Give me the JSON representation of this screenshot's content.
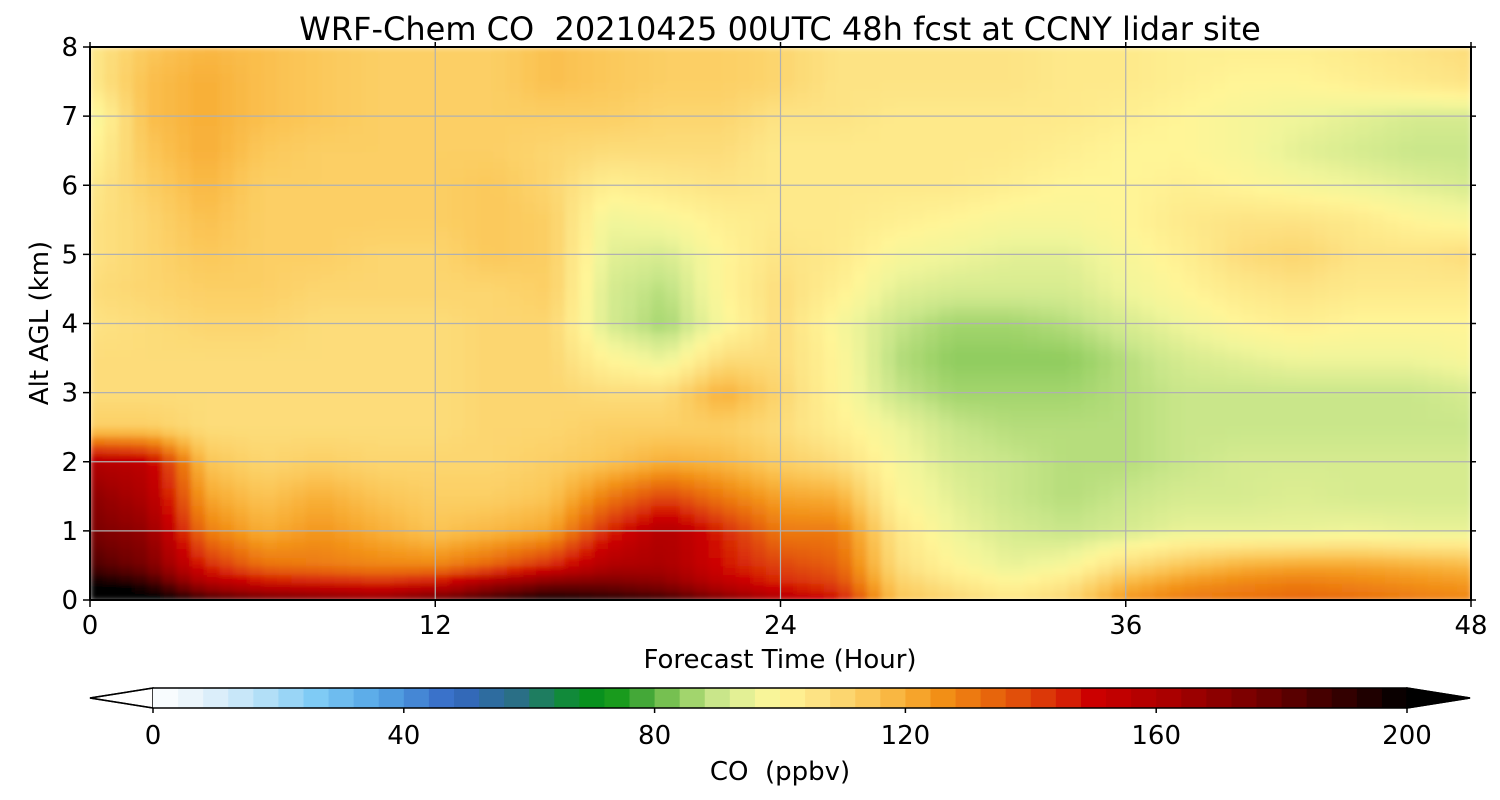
{
  "chart_data": {
    "type": "heatmap",
    "title": "WRF-Chem CO  20210425 00UTC 48h fcst at CCNY lidar site",
    "xlabel": "Forecast Time (Hour)",
    "ylabel": "Alt AGL (km)",
    "xlim": [
      0,
      48
    ],
    "ylim": [
      0,
      8
    ],
    "x_ticks": [
      0,
      12,
      24,
      36,
      48
    ],
    "y_ticks": [
      0,
      1,
      2,
      3,
      4,
      5,
      6,
      7,
      8
    ],
    "grid": true,
    "x_hours": [
      0,
      2,
      4,
      6,
      8,
      10,
      12,
      14,
      16,
      18,
      20,
      22,
      24,
      26,
      28,
      30,
      32,
      34,
      36,
      38,
      40,
      42,
      44,
      46,
      48
    ],
    "y_km": [
      0,
      0.25,
      0.5,
      1,
      1.5,
      2,
      2.5,
      3,
      3.5,
      4,
      4.5,
      5,
      5.5,
      6,
      6.5,
      7,
      7.5,
      8
    ],
    "values_ppbv": [
      [
        220,
        210,
        190,
        180,
        175,
        170,
        180,
        190,
        200,
        195,
        190,
        175,
        160,
        150,
        115,
        110,
        105,
        110,
        125,
        130,
        132,
        134,
        133,
        130,
        128
      ],
      [
        200,
        190,
        160,
        150,
        148,
        145,
        150,
        165,
        175,
        175,
        170,
        155,
        145,
        140,
        112,
        105,
        100,
        105,
        118,
        125,
        128,
        130,
        128,
        126,
        124
      ],
      [
        185,
        175,
        145,
        132,
        130,
        128,
        128,
        135,
        145,
        160,
        162,
        148,
        140,
        135,
        108,
        100,
        95,
        98,
        108,
        115,
        120,
        122,
        122,
        120,
        118
      ],
      [
        175,
        168,
        130,
        120,
        125,
        120,
        115,
        118,
        122,
        145,
        160,
        145,
        130,
        130,
        105,
        96,
        92,
        90,
        92,
        95,
        95,
        95,
        96,
        95,
        95
      ],
      [
        170,
        160,
        122,
        115,
        120,
        115,
        112,
        112,
        115,
        130,
        140,
        130,
        122,
        120,
        100,
        94,
        90,
        88,
        90,
        92,
        92,
        93,
        92,
        92,
        92
      ],
      [
        160,
        155,
        115,
        110,
        112,
        110,
        110,
        110,
        112,
        115,
        120,
        118,
        112,
        108,
        98,
        92,
        90,
        88,
        88,
        90,
        92,
        92,
        92,
        92,
        92
      ],
      [
        112,
        112,
        108,
        108,
        108,
        108,
        108,
        110,
        110,
        112,
        112,
        112,
        108,
        102,
        96,
        90,
        88,
        88,
        88,
        90,
        90,
        90,
        90,
        90,
        90
      ],
      [
        108,
        108,
        108,
        108,
        108,
        108,
        108,
        110,
        110,
        108,
        108,
        120,
        110,
        100,
        90,
        86,
        86,
        86,
        88,
        90,
        90,
        90,
        90,
        90,
        92
      ],
      [
        108,
        108,
        108,
        108,
        108,
        108,
        108,
        110,
        110,
        100,
        95,
        108,
        108,
        100,
        88,
        84,
        84,
        84,
        88,
        92,
        94,
        96,
        96,
        96,
        98
      ],
      [
        106,
        108,
        110,
        110,
        108,
        108,
        108,
        110,
        110,
        92,
        86,
        98,
        108,
        98,
        90,
        86,
        86,
        88,
        92,
        96,
        100,
        102,
        100,
        100,
        100
      ],
      [
        108,
        110,
        112,
        112,
        110,
        110,
        110,
        110,
        112,
        92,
        88,
        100,
        108,
        102,
        94,
        92,
        92,
        92,
        96,
        100,
        104,
        106,
        104,
        104,
        104
      ],
      [
        106,
        110,
        114,
        112,
        112,
        110,
        110,
        114,
        112,
        94,
        92,
        100,
        106,
        104,
        98,
        96,
        94,
        94,
        98,
        102,
        108,
        110,
        106,
        106,
        108
      ],
      [
        106,
        110,
        116,
        112,
        112,
        112,
        112,
        114,
        112,
        96,
        98,
        102,
        104,
        104,
        102,
        100,
        98,
        98,
        100,
        104,
        106,
        106,
        104,
        100,
        98
      ],
      [
        104,
        112,
        118,
        112,
        112,
        112,
        112,
        114,
        110,
        102,
        104,
        106,
        104,
        104,
        104,
        104,
        102,
        100,
        100,
        102,
        100,
        98,
        96,
        94,
        92
      ],
      [
        100,
        114,
        120,
        114,
        112,
        112,
        112,
        112,
        110,
        108,
        108,
        108,
        104,
        104,
        104,
        104,
        104,
        102,
        100,
        100,
        98,
        94,
        92,
        90,
        90
      ],
      [
        96,
        116,
        120,
        116,
        114,
        112,
        112,
        112,
        112,
        112,
        110,
        110,
        106,
        106,
        104,
        104,
        104,
        104,
        102,
        100,
        98,
        96,
        94,
        92,
        92
      ],
      [
        104,
        116,
        120,
        116,
        114,
        112,
        112,
        112,
        116,
        114,
        112,
        112,
        110,
        106,
        106,
        106,
        106,
        104,
        104,
        102,
        100,
        100,
        102,
        104,
        106
      ],
      [
        104,
        114,
        118,
        116,
        114,
        112,
        112,
        112,
        116,
        114,
        112,
        112,
        110,
        106,
        106,
        106,
        106,
        104,
        104,
        102,
        102,
        102,
        104,
        106,
        108
      ]
    ],
    "colorbar": {
      "label": "CO  (ppbv)",
      "ticks": [
        0,
        40,
        80,
        120,
        160,
        200
      ],
      "min": 0,
      "max": 200,
      "extend": "both",
      "stops": [
        {
          "v": 0,
          "c": "#ffffff"
        },
        {
          "v": 8,
          "c": "#e4f1fa"
        },
        {
          "v": 16,
          "c": "#bfe4f8"
        },
        {
          "v": 26,
          "c": "#7fcbf5"
        },
        {
          "v": 36,
          "c": "#55a6e6"
        },
        {
          "v": 48,
          "c": "#3567c4"
        },
        {
          "v": 58,
          "c": "#2a6f86"
        },
        {
          "v": 66,
          "c": "#118a3a"
        },
        {
          "v": 72,
          "c": "#049410"
        },
        {
          "v": 78,
          "c": "#44a838"
        },
        {
          "v": 84,
          "c": "#8fcc5e"
        },
        {
          "v": 90,
          "c": "#c9e68a"
        },
        {
          "v": 96,
          "c": "#f0f59a"
        },
        {
          "v": 100,
          "c": "#fff597"
        },
        {
          "v": 106,
          "c": "#fde384"
        },
        {
          "v": 114,
          "c": "#fbc85a"
        },
        {
          "v": 120,
          "c": "#f8ae36"
        },
        {
          "v": 126,
          "c": "#f28f16"
        },
        {
          "v": 134,
          "c": "#e7650c"
        },
        {
          "v": 144,
          "c": "#d92d07"
        },
        {
          "v": 150,
          "c": "#cc0000"
        },
        {
          "v": 162,
          "c": "#aa0000"
        },
        {
          "v": 176,
          "c": "#760000"
        },
        {
          "v": 190,
          "c": "#330000"
        },
        {
          "v": 200,
          "c": "#000000"
        }
      ]
    }
  }
}
